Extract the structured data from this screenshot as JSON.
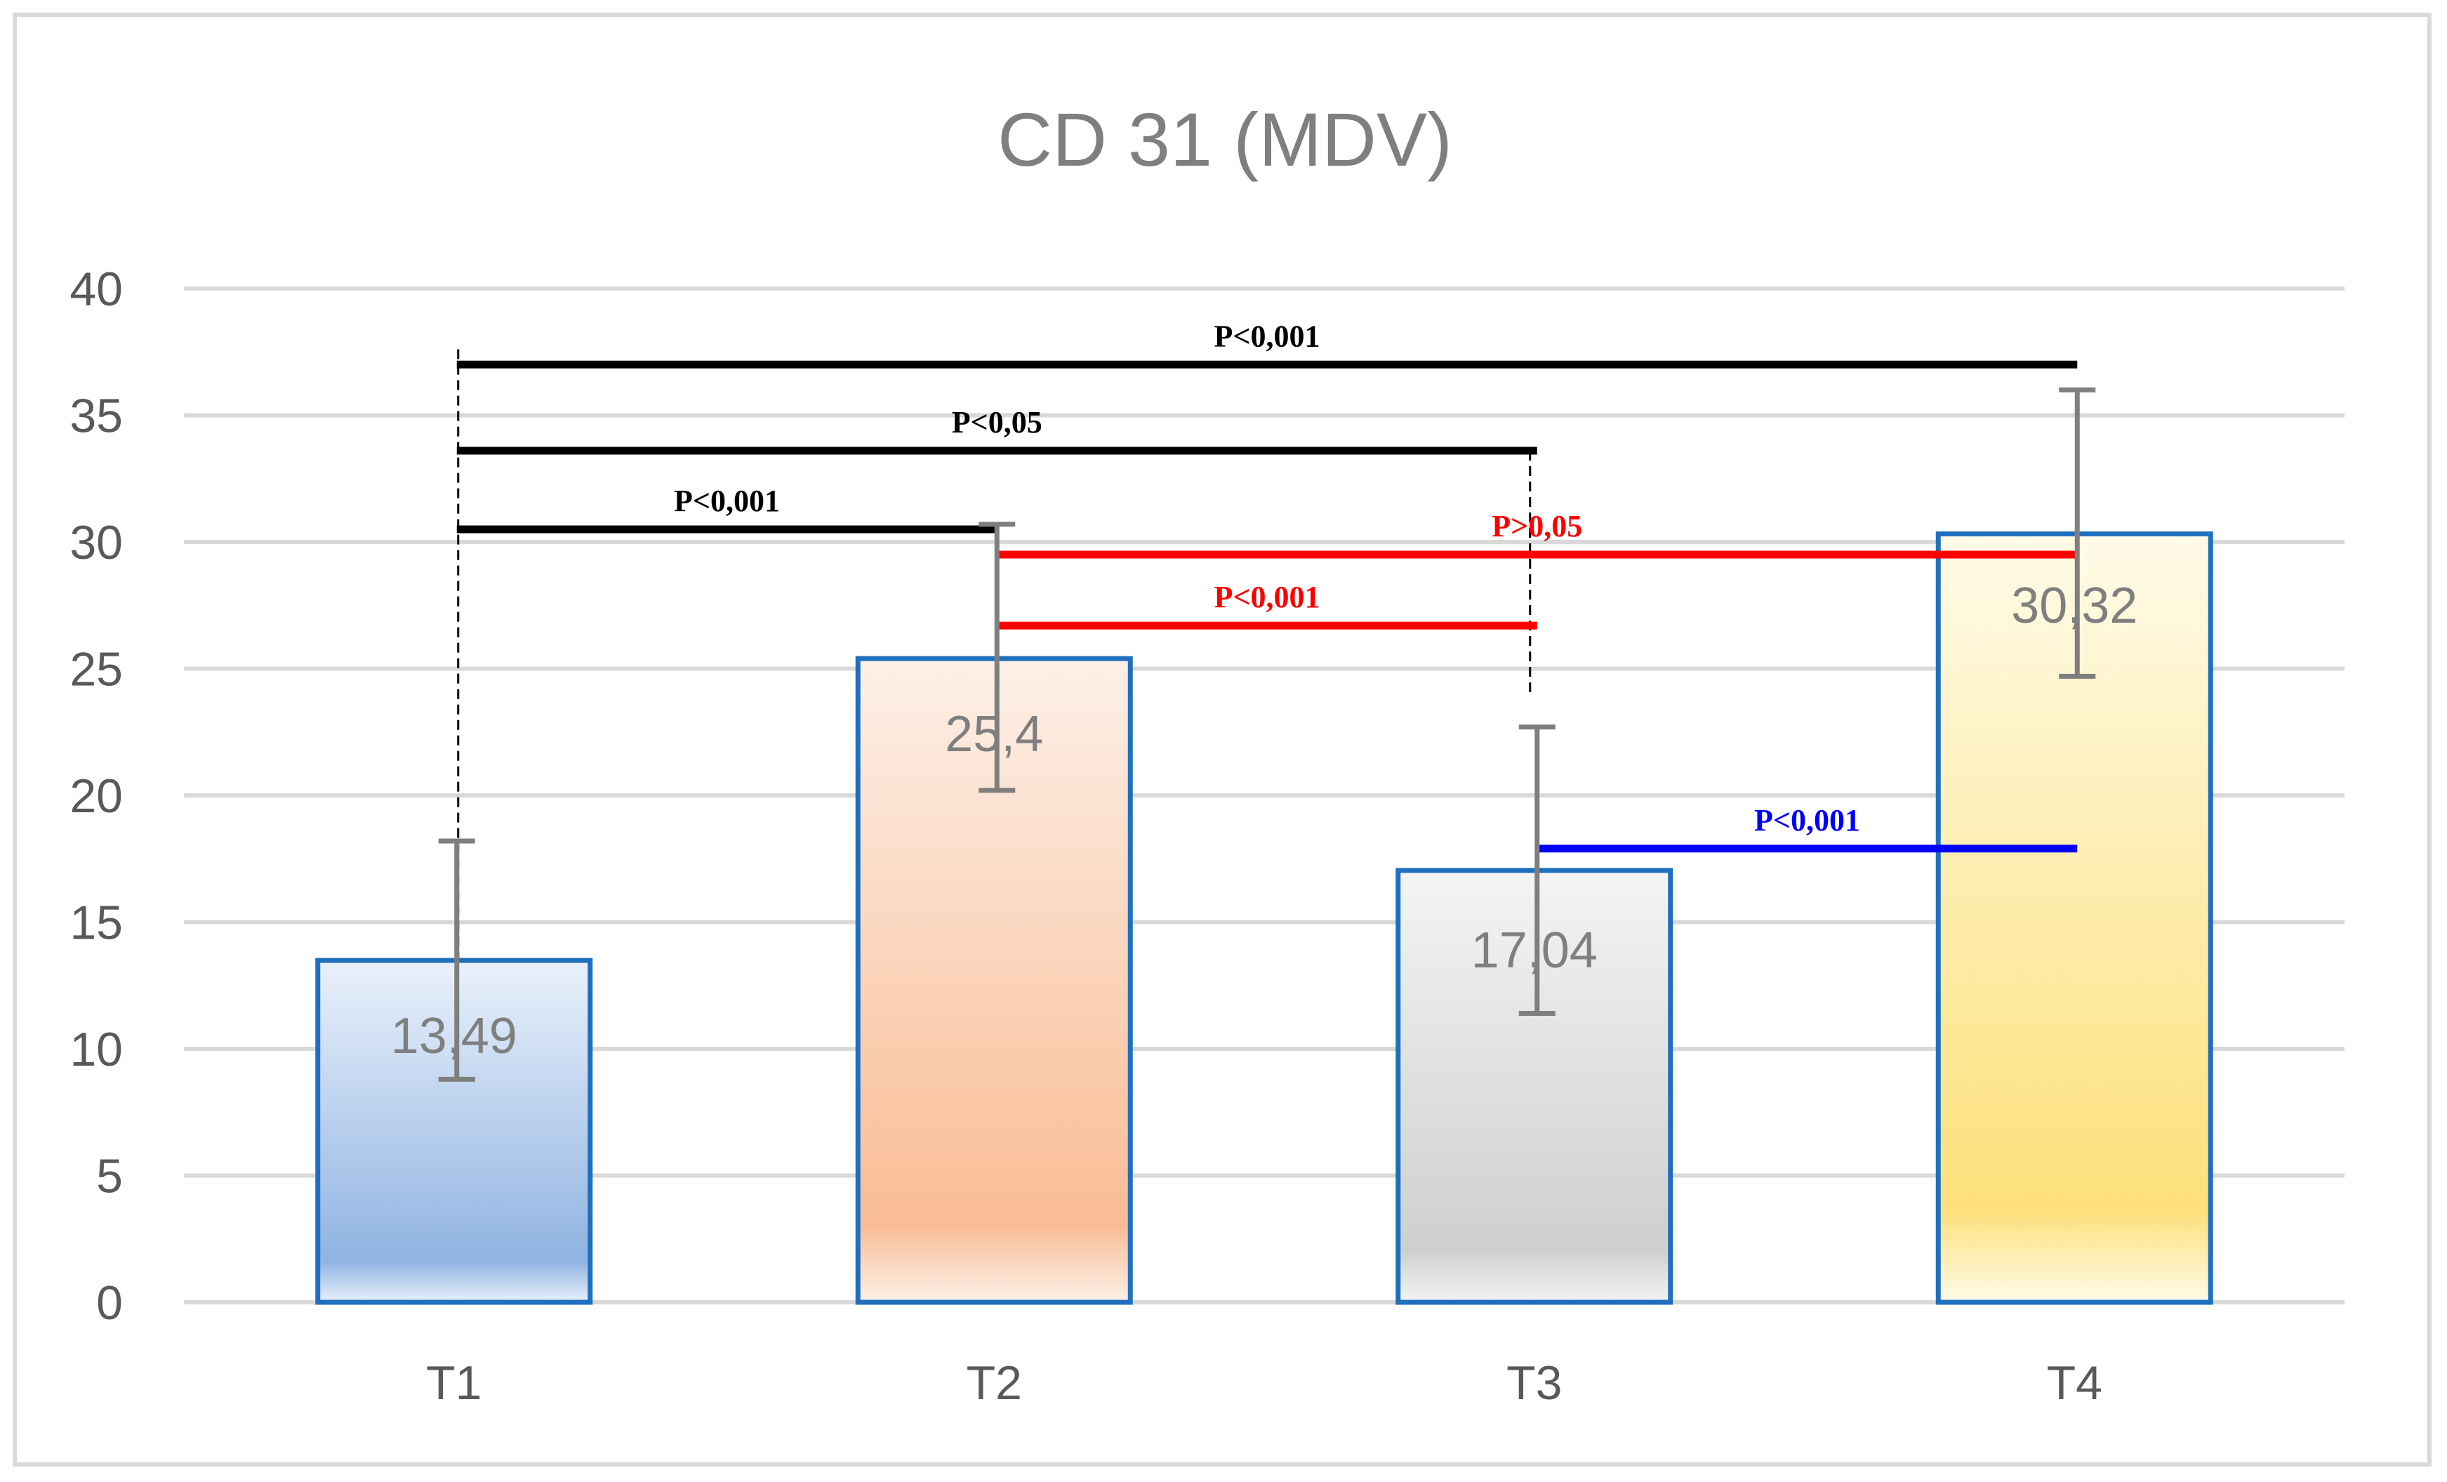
{
  "chart_data": {
    "type": "bar",
    "title": "CD 31 (MDV)",
    "categories": [
      "T1",
      "T2",
      "T3",
      "T4"
    ],
    "values": [
      13.49,
      25.4,
      17.04,
      30.32
    ],
    "value_labels": [
      "13,49",
      "25,4",
      "17,04",
      "30,32"
    ],
    "error_bars": [
      {
        "low": 8.8,
        "high": 18.2
      },
      {
        "low": 20.2,
        "high": 30.7
      },
      {
        "low": 11.4,
        "high": 22.7
      },
      {
        "low": 24.7,
        "high": 36.0
      }
    ],
    "ylim": [
      0,
      40
    ],
    "yticks": [
      0,
      5,
      10,
      15,
      20,
      25,
      30,
      35,
      40
    ],
    "grid": true,
    "bar_fills": [
      {
        "top": "#eaf1fb",
        "bottom": "#8fb3e1"
      },
      {
        "top": "#fdf0e8",
        "bottom": "#f9bc94"
      },
      {
        "top": "#f4f4f4",
        "bottom": "#cfcfcf"
      },
      {
        "top": "#fffbe8",
        "bottom": "#fde07a"
      }
    ],
    "bar_border_color": "#1f6fbf",
    "error_color": "#7f7f7f",
    "comparisons": [
      {
        "label": "P<0,001",
        "from": "T1",
        "to": "T4",
        "y": 37.0,
        "color": "#000000"
      },
      {
        "label": "P<0,05",
        "from": "T1",
        "to": "T3",
        "y": 33.6,
        "color": "#000000"
      },
      {
        "label": "P<0,001",
        "from": "T1",
        "to": "T2",
        "y": 30.5,
        "color": "#000000"
      },
      {
        "label": "P>0,05",
        "from": "T2",
        "to": "T4",
        "y": 29.5,
        "color": "#ff0000"
      },
      {
        "label": "P<0,001",
        "from": "T2",
        "to": "T3",
        "y": 26.7,
        "color": "#ff0000"
      },
      {
        "label": "P<0,001",
        "from": "T3",
        "to": "T4",
        "y": 17.9,
        "color": "#0000ff"
      }
    ]
  }
}
